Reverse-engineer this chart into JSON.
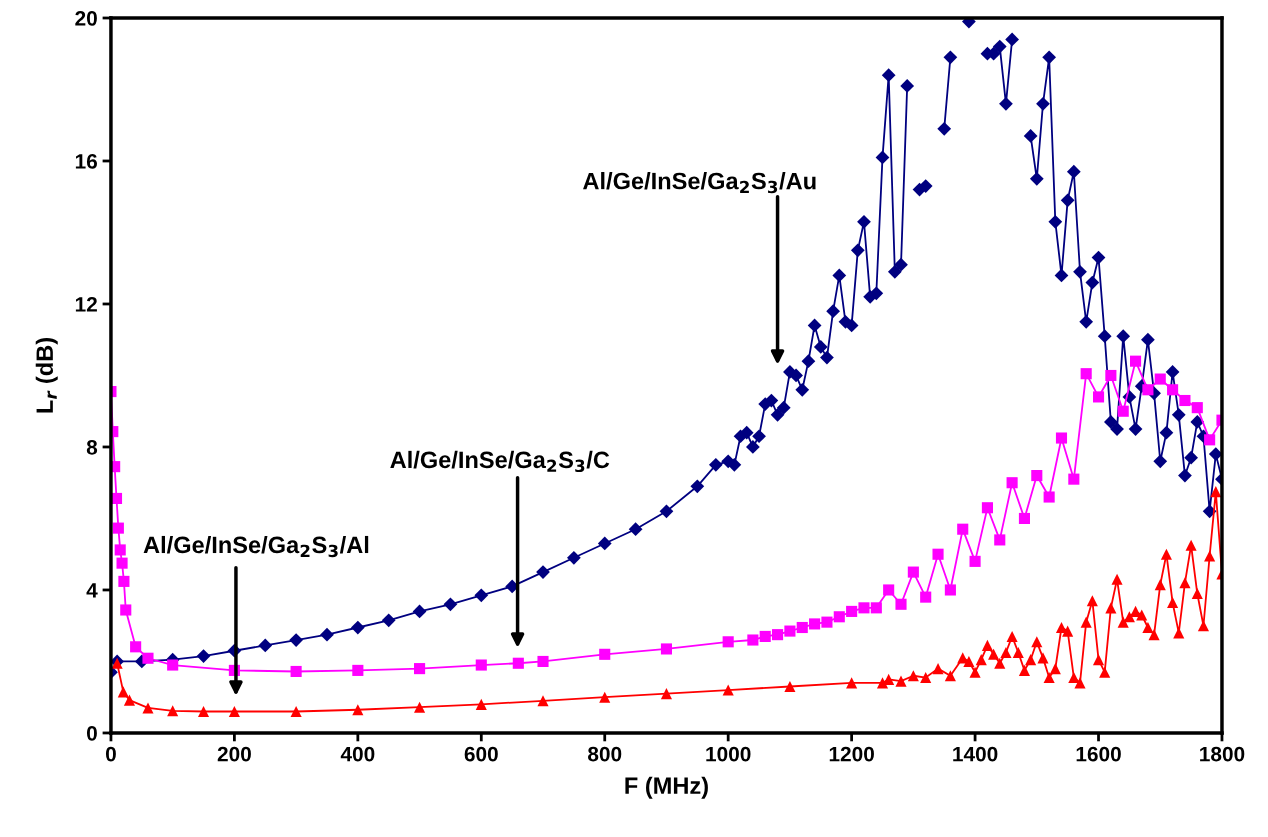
{
  "chart_data": {
    "type": "line",
    "xlabel": "F (MHz)",
    "ylabel": "L$_{r}$ (dB)",
    "xlim": [
      0,
      1800
    ],
    "xticks": [
      0,
      200,
      400,
      600,
      800,
      1000,
      1200,
      1400,
      1600,
      1800
    ],
    "ylim": [
      0,
      20
    ],
    "yticks": [
      0,
      4,
      8,
      12,
      16,
      20
    ],
    "grid": false,
    "legend": false,
    "line_style": "solid",
    "series": [
      {
        "color": "#000080",
        "marker": "diamond",
        "x": [
          0,
          10,
          50,
          100,
          150,
          200,
          250,
          300,
          350,
          400,
          450,
          500,
          550,
          600,
          650,
          700,
          750,
          800,
          850,
          900,
          950,
          980,
          1000,
          1010,
          1020,
          1030,
          1040,
          1050,
          1060,
          1070,
          1080,
          1090,
          1100,
          1110,
          1120,
          1130,
          1140,
          1150,
          1160,
          1170,
          1180,
          1190,
          1200,
          1210,
          1220,
          1230,
          1240,
          1250,
          1260,
          1270,
          1280,
          1290,
          1300,
          1310,
          1320,
          1330,
          1340,
          1350,
          1360,
          1370,
          1380,
          1390,
          1400,
          1410,
          1420,
          1430,
          1440,
          1450,
          1460,
          1470,
          1480,
          1490,
          1500,
          1510,
          1520,
          1530,
          1540,
          1550,
          1560,
          1570,
          1580,
          1590,
          1600,
          1610,
          1620,
          1630,
          1640,
          1650,
          1660,
          1670,
          1680,
          1690,
          1700,
          1710,
          1720,
          1730,
          1740,
          1750,
          1760,
          1770,
          1780,
          1790,
          1800
        ],
        "values": [
          1.7,
          2.0,
          2.0,
          2.05,
          2.15,
          2.3,
          2.45,
          2.6,
          2.75,
          2.95,
          3.15,
          3.4,
          3.6,
          3.85,
          4.1,
          4.5,
          4.9,
          5.3,
          5.7,
          6.2,
          6.9,
          7.5,
          7.6,
          7.5,
          8.3,
          8.4,
          8.0,
          8.3,
          9.2,
          9.3,
          8.9,
          9.1,
          10.1,
          10.0,
          9.6,
          10.4,
          11.4,
          10.8,
          10.5,
          11.8,
          12.8,
          11.5,
          11.4,
          13.5,
          14.3,
          12.2,
          12.3,
          16.1,
          18.4,
          12.9,
          13.1,
          18.1,
          null,
          15.2,
          15.3,
          null,
          null,
          16.9,
          18.9,
          null,
          null,
          19.9,
          null,
          null,
          19.0,
          19.0,
          19.2,
          17.6,
          19.4,
          null,
          null,
          16.7,
          15.5,
          17.6,
          18.9,
          14.3,
          12.8,
          14.9,
          15.7,
          12.9,
          11.5,
          12.6,
          13.3,
          11.1,
          8.7,
          8.5,
          11.1,
          9.4,
          8.5,
          9.7,
          11.0,
          9.5,
          7.6,
          8.4,
          10.1,
          8.9,
          7.2,
          7.7,
          8.7,
          8.3,
          6.2,
          7.8,
          7.1
        ]
      },
      {
        "color": "#ff00ff",
        "marker": "square",
        "x": [
          0,
          3,
          6,
          9,
          12,
          15,
          18,
          21,
          24,
          40,
          60,
          100,
          200,
          300,
          400,
          500,
          600,
          660,
          700,
          800,
          900,
          1000,
          1040,
          1060,
          1080,
          1100,
          1120,
          1140,
          1160,
          1180,
          1200,
          1220,
          1240,
          1260,
          1280,
          1300,
          1320,
          1340,
          1360,
          1380,
          1400,
          1420,
          1440,
          1460,
          1480,
          1500,
          1520,
          1540,
          1560,
          1580,
          1600,
          1620,
          1640,
          1660,
          1680,
          1700,
          1720,
          1740,
          1760,
          1780,
          1800
        ],
        "values": [
          9.55,
          8.43,
          7.45,
          6.56,
          5.73,
          5.12,
          4.75,
          4.24,
          3.44,
          2.41,
          2.09,
          1.9,
          1.75,
          1.72,
          1.75,
          1.8,
          1.9,
          1.95,
          2.0,
          2.2,
          2.35,
          2.55,
          2.6,
          2.7,
          2.75,
          2.85,
          2.95,
          3.05,
          3.1,
          3.25,
          3.4,
          3.5,
          3.5,
          4.0,
          3.6,
          4.5,
          3.8,
          5.0,
          4.0,
          5.7,
          4.8,
          6.3,
          5.4,
          7.0,
          6.0,
          7.2,
          6.6,
          8.25,
          7.1,
          10.05,
          9.4,
          10.0,
          9.0,
          10.4,
          9.6,
          9.9,
          9.6,
          9.3,
          9.1,
          8.2,
          8.75
        ]
      },
      {
        "color": "#ff0000",
        "marker": "triangle",
        "x": [
          10,
          20,
          30,
          60,
          100,
          150,
          200,
          300,
          400,
          500,
          600,
          700,
          800,
          900,
          1000,
          1100,
          1200,
          1250,
          1260,
          1280,
          1300,
          1320,
          1340,
          1360,
          1380,
          1390,
          1400,
          1410,
          1420,
          1430,
          1440,
          1450,
          1460,
          1470,
          1480,
          1490,
          1500,
          1510,
          1520,
          1530,
          1540,
          1550,
          1560,
          1570,
          1580,
          1590,
          1600,
          1610,
          1620,
          1630,
          1640,
          1650,
          1660,
          1670,
          1680,
          1690,
          1700,
          1710,
          1720,
          1730,
          1740,
          1750,
          1760,
          1770,
          1780,
          1790,
          1800
        ],
        "values": [
          1.95,
          1.15,
          0.92,
          0.7,
          0.62,
          0.6,
          0.6,
          0.6,
          0.65,
          0.72,
          0.8,
          0.9,
          1.0,
          1.1,
          1.2,
          1.3,
          1.4,
          1.4,
          1.5,
          1.45,
          1.6,
          1.55,
          1.8,
          1.6,
          2.1,
          2.0,
          1.7,
          2.05,
          2.45,
          2.2,
          1.95,
          2.25,
          2.7,
          2.25,
          1.75,
          2.05,
          2.55,
          2.1,
          1.55,
          1.8,
          2.95,
          2.85,
          1.55,
          1.4,
          3.1,
          3.7,
          2.05,
          1.7,
          3.5,
          4.3,
          3.1,
          3.25,
          3.4,
          3.3,
          2.95,
          2.75,
          4.15,
          5.0,
          3.65,
          2.8,
          4.2,
          5.25,
          3.9,
          3.0,
          4.95,
          6.75,
          4.45
        ]
      }
    ],
    "annotations": [
      "Al/Ge/InSe/Ga$_{2}$S$_{3}$/Au",
      "Al/Ge/InSe/Ga$_{2}$S$_{3}$/C",
      "Al/Ge/InSe/Ga$_{2}$S$_{3}$/Al"
    ]
  }
}
